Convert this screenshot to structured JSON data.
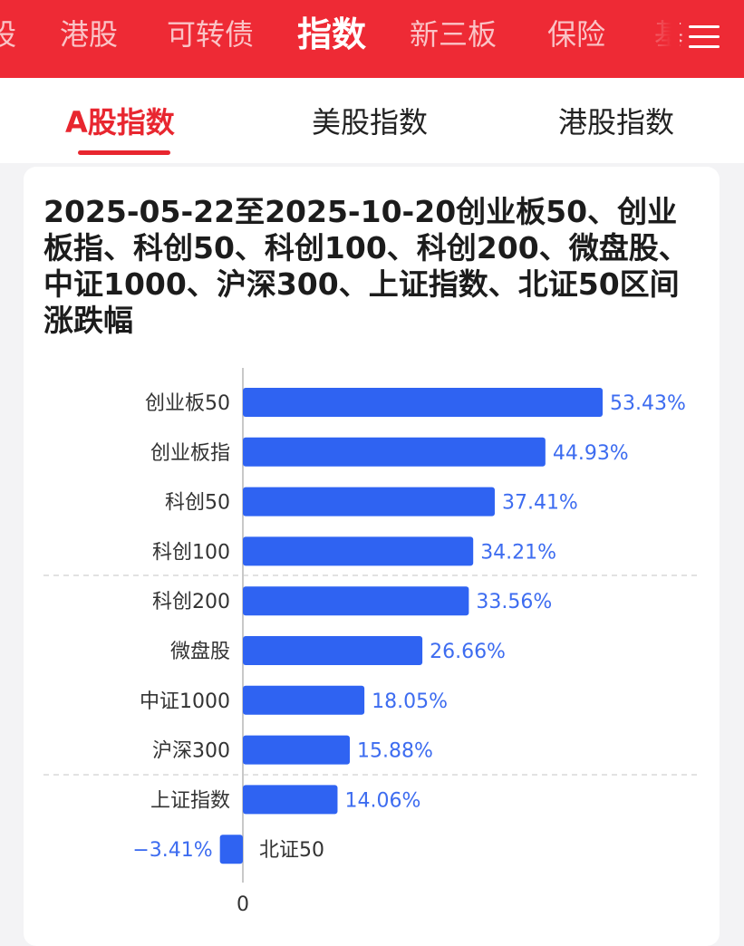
{
  "top_nav": {
    "tabs": [
      "股",
      "港股",
      "可转债",
      "指数",
      "新三板",
      "保险",
      "基"
    ],
    "active": "指数"
  },
  "sub_tabs": {
    "tabs": [
      "A股指数",
      "美股指数",
      "港股指数"
    ],
    "active": "A股指数"
  },
  "colors": {
    "brand_red": "#ee2a35",
    "active_red": "#e8262f",
    "bar_blue": "#2f63f2",
    "label_blue": "#3d6cf0"
  },
  "icons": {
    "menu": "hamburger-menu-icon"
  },
  "chart_data": {
    "type": "bar",
    "orientation": "horizontal",
    "title": "2025-05-22至2025-10-20创业板50、创业板指、科创50、科创100、科创200、微盘股、中证1000、沪深300、上证指数、北证50区间涨跌幅",
    "categories": [
      "创业板50",
      "创业板指",
      "科创50",
      "科创100",
      "科创200",
      "微盘股",
      "中证1000",
      "沪深300",
      "上证指数",
      "北证50"
    ],
    "values": [
      53.43,
      44.93,
      37.41,
      34.21,
      33.56,
      26.66,
      18.05,
      15.88,
      14.06,
      -3.41
    ],
    "value_labels": [
      "53.43%",
      "44.93%",
      "37.41%",
      "34.21%",
      "33.56%",
      "26.66%",
      "18.05%",
      "15.88%",
      "14.06%",
      "−3.41%"
    ],
    "zero_label": "0",
    "xlim": [
      -3.41,
      53.43
    ],
    "unit": "%"
  }
}
